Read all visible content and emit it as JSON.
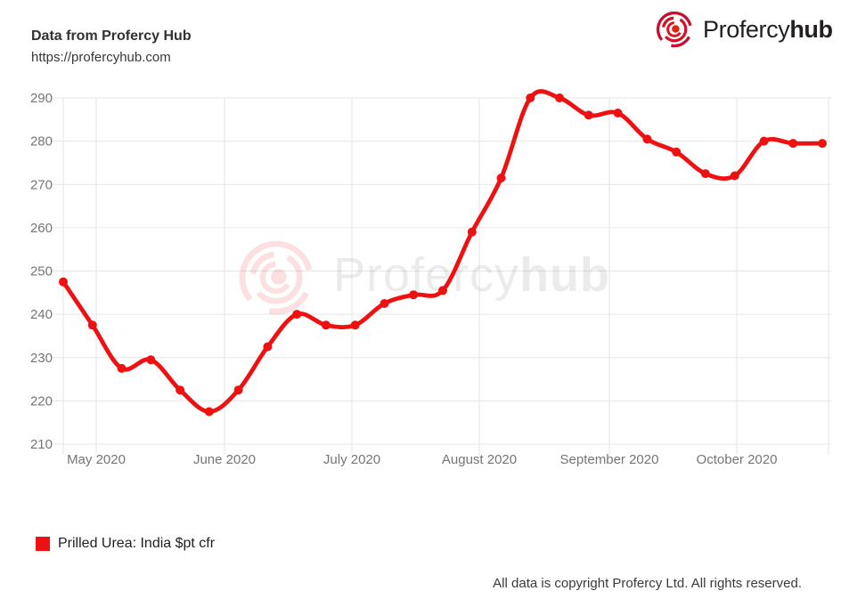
{
  "header": {
    "title": "Data from Profercy Hub",
    "url": "https://profercyhub.com"
  },
  "logo": {
    "name": "Profercy",
    "suffix": "hub"
  },
  "watermark": {
    "name": "Profercy",
    "suffix": "hub"
  },
  "legend": {
    "label": "Prilled Urea: India $pt cfr",
    "swatch_color": "#ee1111"
  },
  "footer": {
    "text": "All data is copyright Profercy Ltd. All rights reserved."
  },
  "chart_data": {
    "type": "line",
    "title": "Prilled Urea: India $pt cfr",
    "xlabel": "",
    "ylabel": "",
    "x_tick_labels": [
      "May 2020",
      "June 2020",
      "July 2020",
      "August 2020",
      "September 2020",
      "October 2020"
    ],
    "y_ticks": [
      210,
      220,
      230,
      240,
      250,
      260,
      270,
      280,
      290
    ],
    "ylim": [
      210,
      290
    ],
    "grid": true,
    "legend_position": "bottom-left",
    "smooth": true,
    "markers": true,
    "colors": {
      "line": "#ee1111",
      "grid": "#e6e6e6",
      "tick_label": "#757575"
    },
    "series": [
      {
        "name": "Prilled Urea: India $pt cfr",
        "color": "#ee1111",
        "values": [
          247.5,
          237.5,
          227.5,
          229.5,
          222.5,
          217.5,
          222.5,
          232.5,
          240,
          237.5,
          237.5,
          242.5,
          244.5,
          245.5,
          259,
          271.5,
          290,
          290,
          286,
          286.5,
          280.5,
          277.5,
          272.5,
          272,
          280,
          279.5,
          279.5
        ]
      }
    ]
  }
}
